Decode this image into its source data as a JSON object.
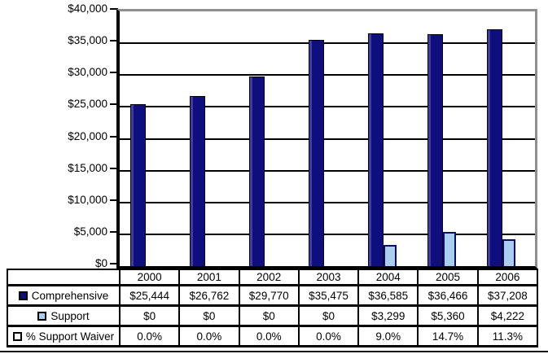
{
  "chart_data": {
    "type": "bar",
    "title": "",
    "xlabel": "",
    "ylabel": "",
    "categories": [
      "2000",
      "2001",
      "2002",
      "2003",
      "2004",
      "2005",
      "2006"
    ],
    "series": [
      {
        "name": "Comprehensive",
        "values": [
          25444,
          26762,
          29770,
          35475,
          36585,
          36466,
          37208
        ],
        "display": [
          "$25,444",
          "$26,762",
          "$29,770",
          "$35,475",
          "$36,585",
          "$36,466",
          "$37,208"
        ],
        "swatch_fill": "#0e0e7c",
        "plotted_as_bars": true
      },
      {
        "name": "Support",
        "values": [
          0,
          0,
          0,
          0,
          3299,
          5360,
          4222
        ],
        "display": [
          "$0",
          "$0",
          "$0",
          "$0",
          "$3,299",
          "$5,360",
          "$4,222"
        ],
        "swatch_fill": "#a9cef0",
        "plotted_as_bars": true
      },
      {
        "name": "% Support Waiver",
        "values": [
          0.0,
          0.0,
          0.0,
          0.0,
          9.0,
          14.7,
          11.3
        ],
        "display": [
          "0.0%",
          "0.0%",
          "0.0%",
          "0.0%",
          "9.0%",
          "14.7%",
          "11.3%"
        ],
        "swatch_fill": "#ffffff",
        "plotted_as_bars": false
      }
    ],
    "ylim": [
      0,
      40000
    ],
    "ytick_step": 5000,
    "yticks": [
      {
        "label": "$40,000",
        "value": 40000
      },
      {
        "label": "$35,000",
        "value": 35000
      },
      {
        "label": "$30,000",
        "value": 30000
      },
      {
        "label": "$25,000",
        "value": 25000
      },
      {
        "label": "$20,000",
        "value": 20000
      },
      {
        "label": "$15,000",
        "value": 15000
      },
      {
        "label": "$10,000",
        "value": 10000
      },
      {
        "label": "$5,000",
        "value": 5000
      },
      {
        "label": "$0",
        "value": 0
      }
    ],
    "grid": true,
    "legend_position": "table-left-column"
  },
  "colors": {
    "bar_dark": "#0e0e7c",
    "bar_dark_highlight": "#3c3cae",
    "bar_light": "#a9cef0",
    "bar_light_border": "#0c0c66",
    "grid_line": "#000000",
    "plot_border_gray": "#8f8f8f",
    "axis_black": "#000000",
    "table_border": "#000000",
    "background": "#ffffff"
  }
}
